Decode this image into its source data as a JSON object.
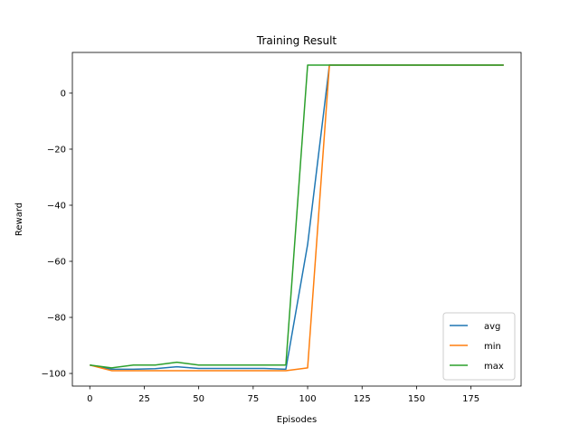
{
  "chart_data": {
    "type": "line",
    "title": "Training Result",
    "xlabel": "Episodes",
    "ylabel": "Reward",
    "xlim": [
      -8,
      198
    ],
    "ylim": [
      -104.5,
      14.5
    ],
    "xticks": [
      0,
      25,
      50,
      75,
      100,
      125,
      150,
      175
    ],
    "yticks": [
      -100,
      -80,
      -60,
      -40,
      -20,
      0
    ],
    "grid": false,
    "legend_position": "lower-right",
    "x": [
      0,
      10,
      20,
      30,
      40,
      50,
      60,
      70,
      80,
      90,
      100,
      110,
      120,
      130,
      140,
      150,
      160,
      170,
      180,
      190
    ],
    "series": [
      {
        "name": "avg",
        "color": "#1f77b4",
        "values": [
          -97,
          -98.5,
          -98.5,
          -98.3,
          -97.6,
          -98.2,
          -98.2,
          -98.2,
          -98.2,
          -98.5,
          -54,
          10,
          10,
          10,
          10,
          10,
          10,
          10,
          10,
          10
        ]
      },
      {
        "name": "min",
        "color": "#ff7f0e",
        "values": [
          -97,
          -99,
          -99,
          -99,
          -99,
          -99,
          -99,
          -99,
          -99,
          -99,
          -98,
          10,
          10,
          10,
          10,
          10,
          10,
          10,
          10,
          10
        ]
      },
      {
        "name": "max",
        "color": "#2ca02c",
        "values": [
          -97,
          -98,
          -97,
          -97,
          -96,
          -97,
          -97,
          -97,
          -97,
          -97,
          10,
          10,
          10,
          10,
          10,
          10,
          10,
          10,
          10,
          10
        ]
      }
    ]
  }
}
